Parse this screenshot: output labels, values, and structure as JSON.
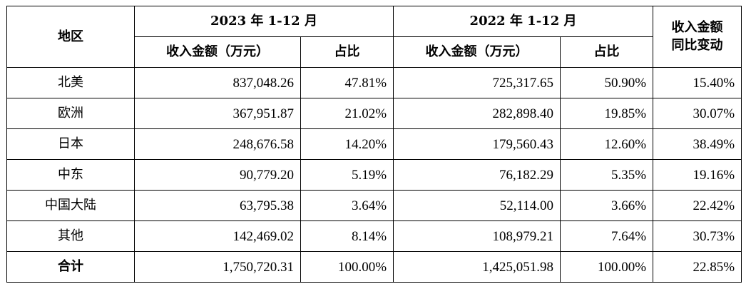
{
  "table": {
    "header": {
      "region": "地区",
      "period_2023": "2023 年 1-12 月",
      "period_2022": "2022 年 1-12 月",
      "yoy_line1": "收入金额",
      "yoy_line2": "同比变动",
      "revenue_2023": "收入金额（万元）",
      "share_2023": "占比",
      "revenue_2022": "收入金额（万元）",
      "share_2022": "占比"
    },
    "rows": [
      {
        "region": "北美",
        "rev2023": "837,048.26",
        "share2023": "47.81%",
        "rev2022": "725,317.65",
        "share2022": "50.90%",
        "yoy": "15.40%"
      },
      {
        "region": "欧洲",
        "rev2023": "367,951.87",
        "share2023": "21.02%",
        "rev2022": "282,898.40",
        "share2022": "19.85%",
        "yoy": "30.07%"
      },
      {
        "region": "日本",
        "rev2023": "248,676.58",
        "share2023": "14.20%",
        "rev2022": "179,560.43",
        "share2022": "12.60%",
        "yoy": "38.49%"
      },
      {
        "region": "中东",
        "rev2023": "90,779.20",
        "share2023": "5.19%",
        "rev2022": "76,182.29",
        "share2022": "5.35%",
        "yoy": "19.16%"
      },
      {
        "region": "中国大陆",
        "rev2023": "63,795.38",
        "share2023": "3.64%",
        "rev2022": "52,114.00",
        "share2022": "3.66%",
        "yoy": "22.42%"
      },
      {
        "region": "其他",
        "rev2023": "142,469.02",
        "share2023": "8.14%",
        "rev2022": "108,979.21",
        "share2022": "7.64%",
        "yoy": "30.73%"
      }
    ],
    "total": {
      "region": "合计",
      "rev2023": "1,750,720.31",
      "share2023": "100.00%",
      "rev2022": "1,425,051.98",
      "share2022": "100.00%",
      "yoy": "22.85%"
    }
  }
}
